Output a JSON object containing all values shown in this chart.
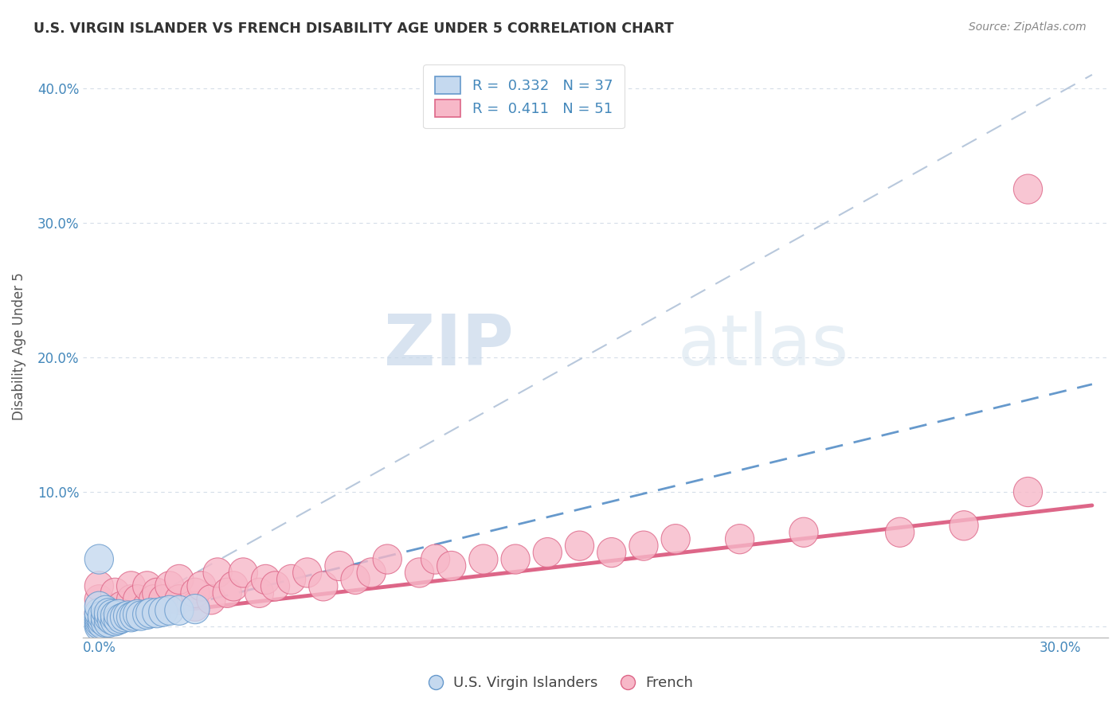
{
  "title": "U.S. VIRGIN ISLANDER VS FRENCH DISABILITY AGE UNDER 5 CORRELATION CHART",
  "source": "Source: ZipAtlas.com",
  "ylabel_label": "Disability Age Under 5",
  "x_ticks": [
    0.0,
    0.05,
    0.1,
    0.15,
    0.2,
    0.25,
    0.3
  ],
  "x_tick_labels": [
    "0.0%",
    "",
    "",
    "",
    "",
    "",
    "30.0%"
  ],
  "y_ticks": [
    0.0,
    0.1,
    0.2,
    0.3,
    0.4
  ],
  "y_tick_labels": [
    "",
    "10.0%",
    "20.0%",
    "30.0%",
    "40.0%"
  ],
  "xlim": [
    -0.005,
    0.315
  ],
  "ylim": [
    -0.008,
    0.425
  ],
  "legend_r_blue": "0.332",
  "legend_n_blue": "37",
  "legend_r_pink": "0.411",
  "legend_n_pink": "51",
  "blue_fill": "#c5d9ef",
  "pink_fill": "#f7b8c8",
  "blue_edge": "#6699cc",
  "pink_edge": "#dd6688",
  "ref_line_color": "#b8c8dc",
  "watermark_zip": "ZIP",
  "watermark_atlas": "atlas",
  "blue_scatter_x": [
    0.0,
    0.0,
    0.0,
    0.0,
    0.0,
    0.0,
    0.0,
    0.0,
    0.001,
    0.001,
    0.001,
    0.002,
    0.002,
    0.002,
    0.003,
    0.003,
    0.003,
    0.004,
    0.004,
    0.005,
    0.005,
    0.006,
    0.006,
    0.007,
    0.008,
    0.009,
    0.01,
    0.011,
    0.012,
    0.013,
    0.015,
    0.016,
    0.018,
    0.02,
    0.022,
    0.025,
    0.03
  ],
  "blue_scatter_y": [
    0.0,
    0.002,
    0.004,
    0.006,
    0.008,
    0.01,
    0.015,
    0.05,
    0.002,
    0.005,
    0.008,
    0.003,
    0.007,
    0.012,
    0.003,
    0.007,
    0.01,
    0.005,
    0.009,
    0.004,
    0.008,
    0.005,
    0.009,
    0.006,
    0.007,
    0.008,
    0.007,
    0.008,
    0.009,
    0.008,
    0.009,
    0.01,
    0.01,
    0.011,
    0.012,
    0.012,
    0.013
  ],
  "pink_scatter_x": [
    0.0,
    0.0,
    0.0,
    0.005,
    0.005,
    0.007,
    0.01,
    0.01,
    0.012,
    0.015,
    0.015,
    0.017,
    0.018,
    0.02,
    0.022,
    0.025,
    0.025,
    0.03,
    0.03,
    0.032,
    0.035,
    0.037,
    0.04,
    0.042,
    0.045,
    0.05,
    0.052,
    0.055,
    0.06,
    0.065,
    0.07,
    0.075,
    0.08,
    0.085,
    0.09,
    0.1,
    0.105,
    0.11,
    0.12,
    0.13,
    0.14,
    0.15,
    0.16,
    0.17,
    0.18,
    0.2,
    0.22,
    0.25,
    0.27,
    0.29,
    0.29
  ],
  "pink_scatter_y": [
    0.01,
    0.02,
    0.03,
    0.01,
    0.025,
    0.015,
    0.02,
    0.03,
    0.02,
    0.015,
    0.03,
    0.02,
    0.025,
    0.02,
    0.03,
    0.02,
    0.035,
    0.015,
    0.025,
    0.03,
    0.02,
    0.04,
    0.025,
    0.03,
    0.04,
    0.025,
    0.035,
    0.03,
    0.035,
    0.04,
    0.03,
    0.045,
    0.035,
    0.04,
    0.05,
    0.04,
    0.05,
    0.045,
    0.05,
    0.05,
    0.055,
    0.06,
    0.055,
    0.06,
    0.065,
    0.065,
    0.07,
    0.07,
    0.075,
    0.1,
    0.325
  ],
  "blue_trend_x": [
    0.0,
    0.31
  ],
  "blue_trend_y": [
    0.0,
    0.18
  ],
  "pink_trend_x": [
    0.0,
    0.31
  ],
  "pink_trend_y": [
    0.005,
    0.09
  ],
  "ref_line_x": [
    0.0,
    0.31
  ],
  "ref_line_y": [
    0.0,
    0.41
  ],
  "background_color": "#ffffff"
}
